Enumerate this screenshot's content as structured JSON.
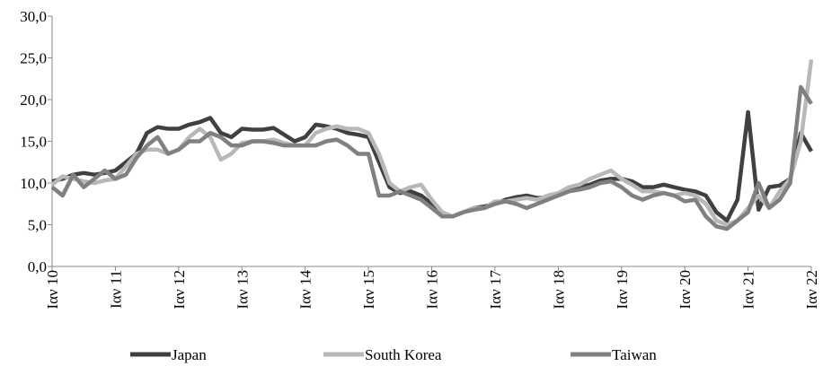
{
  "chart_data": {
    "type": "line",
    "x": [
      0,
      2,
      4,
      6,
      8,
      10,
      12,
      14,
      16,
      18,
      20,
      22,
      24,
      26,
      28,
      30,
      32,
      34,
      36,
      38,
      40,
      42,
      44,
      46,
      48,
      50,
      52,
      54,
      56,
      58,
      60,
      62,
      64,
      66,
      68,
      70,
      72,
      74,
      76,
      78,
      80,
      82,
      84,
      86,
      88,
      90,
      92,
      94,
      96,
      98,
      100,
      102,
      104,
      106,
      108,
      110,
      112,
      114,
      116,
      118,
      120,
      122,
      124,
      126,
      128,
      130,
      132,
      134,
      136,
      138,
      140,
      142,
      144
    ],
    "xlim": [
      0,
      144
    ],
    "xticks": [
      {
        "value": 0,
        "label": "Ιαν 10"
      },
      {
        "value": 12,
        "label": "Ιαν 11"
      },
      {
        "value": 24,
        "label": "Ιαν 12"
      },
      {
        "value": 36,
        "label": "Ιαν 13"
      },
      {
        "value": 48,
        "label": "Ιαν 14"
      },
      {
        "value": 60,
        "label": "Ιαν 15"
      },
      {
        "value": 72,
        "label": "Ιαν 16"
      },
      {
        "value": 84,
        "label": "Ιαν 17"
      },
      {
        "value": 96,
        "label": "Ιαν 18"
      },
      {
        "value": 108,
        "label": "Ιαν 19"
      },
      {
        "value": 120,
        "label": "Ιαν 20"
      },
      {
        "value": 132,
        "label": "Ιαν 21"
      },
      {
        "value": 144,
        "label": "Ιαν 22"
      }
    ],
    "ylim": [
      0,
      30
    ],
    "yticks": [
      {
        "value": 0,
        "label": "0,0"
      },
      {
        "value": 5,
        "label": "5,0"
      },
      {
        "value": 10,
        "label": "10,0"
      },
      {
        "value": 15,
        "label": "15,0"
      },
      {
        "value": 20,
        "label": "20,0"
      },
      {
        "value": 25,
        "label": "25,0"
      },
      {
        "value": 30,
        "label": "30,0"
      }
    ],
    "legend": "bottom",
    "series": [
      {
        "name": "Japan",
        "color": "#404040",
        "values": [
          10.2,
          10.5,
          11,
          11.2,
          11,
          11.2,
          11.5,
          12.5,
          13.5,
          16,
          16.7,
          16.5,
          16.5,
          17,
          17.3,
          17.8,
          16,
          15.5,
          16.5,
          16.4,
          16.4,
          16.6,
          15.8,
          15,
          15.5,
          17,
          16.8,
          16.5,
          16,
          15.8,
          15.5,
          12.5,
          9.5,
          8.8,
          9,
          8.5,
          7.5,
          6,
          6,
          6.5,
          7,
          7.2,
          7.5,
          8,
          8.3,
          8.5,
          8.2,
          8.3,
          8.5,
          9,
          9.5,
          9.8,
          10.3,
          10.5,
          10.5,
          10.2,
          9.5,
          9.5,
          9.8,
          9.5,
          9.2,
          9,
          8.5,
          6.5,
          5.5,
          8,
          18.5,
          6.8,
          9.5,
          9.7,
          10.5,
          16,
          13.8
        ]
      },
      {
        "name": "South Korea",
        "color": "#b8b8b8",
        "values": [
          9.8,
          10.8,
          10.5,
          10.2,
          10,
          10.3,
          10.5,
          12,
          13.5,
          14,
          14,
          13.5,
          14,
          15.5,
          16.5,
          15.5,
          12.8,
          13.5,
          14.8,
          15,
          15,
          15.2,
          14.8,
          14.5,
          14.5,
          16,
          16.5,
          16.8,
          16.5,
          16.5,
          16,
          13.5,
          10,
          9,
          9.5,
          9.8,
          8,
          6.5,
          6,
          6.5,
          7,
          7,
          7.8,
          7.8,
          8,
          8.2,
          8,
          8.5,
          8.8,
          9.5,
          9.8,
          10.5,
          11,
          11.5,
          10.5,
          9.8,
          9,
          9,
          8.8,
          8.5,
          8.8,
          8.5,
          7.5,
          5.5,
          5,
          5.5,
          7,
          8.5,
          7,
          9,
          10.5,
          15,
          24.8
        ]
      },
      {
        "name": "Taiwan",
        "color": "#808080",
        "values": [
          9.5,
          8.5,
          11,
          9.5,
          10.5,
          11.5,
          10.5,
          11,
          13,
          14.5,
          15.5,
          13.5,
          14,
          15,
          15,
          16,
          15.5,
          14.5,
          14.5,
          15,
          15,
          14.8,
          14.5,
          14.5,
          14.5,
          14.5,
          15,
          15.2,
          14.5,
          13.5,
          13.5,
          8.5,
          8.5,
          9,
          8.5,
          8,
          7,
          6,
          6,
          6.5,
          6.8,
          7,
          7.5,
          7.8,
          7.5,
          7,
          7.5,
          8,
          8.5,
          9,
          9.2,
          9.5,
          10,
          10.2,
          9.5,
          8.5,
          8,
          8.5,
          8.8,
          8.5,
          7.8,
          8,
          6,
          4.8,
          4.5,
          5.5,
          6.5,
          10,
          7,
          8,
          10,
          21.5,
          19.5
        ]
      }
    ]
  }
}
